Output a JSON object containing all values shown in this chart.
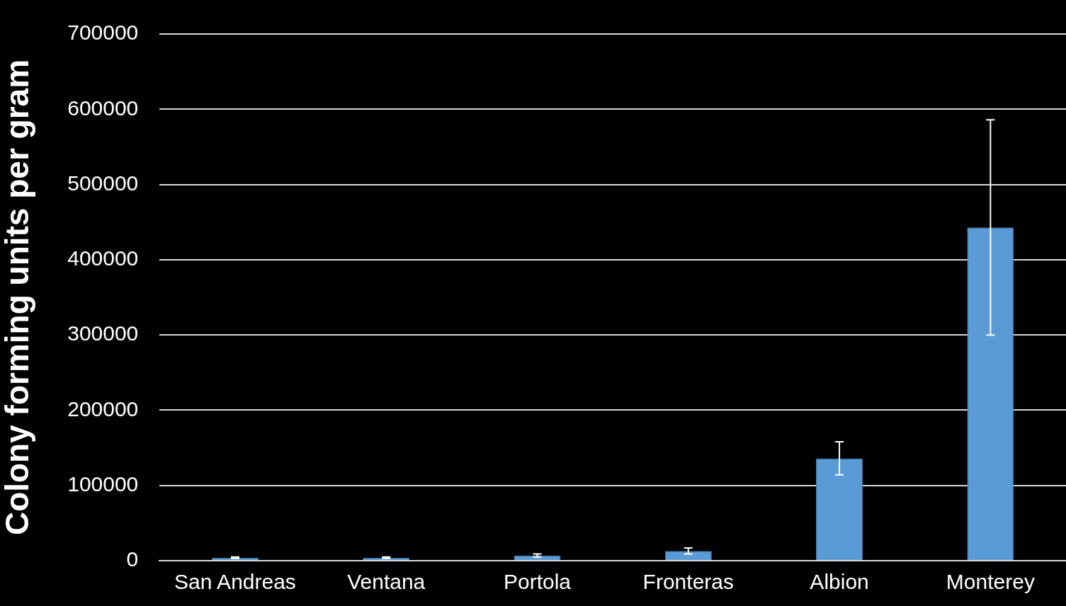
{
  "chart_data": {
    "type": "bar",
    "ylabel": "Colony forming units per gram",
    "categories": [
      "San Andreas",
      "Ventana",
      "Portola",
      "Fronteras",
      "Albion",
      "Monterey"
    ],
    "values": [
      4000,
      4000,
      7000,
      13000,
      136000,
      443000
    ],
    "errors": [
      1000,
      1000,
      2000,
      4000,
      22000,
      143000
    ],
    "color": "#5b9bd5",
    "ylim": [
      0,
      700000
    ],
    "yticks": [
      0,
      100000,
      200000,
      300000,
      400000,
      500000,
      600000,
      700000
    ],
    "grid": "y"
  }
}
